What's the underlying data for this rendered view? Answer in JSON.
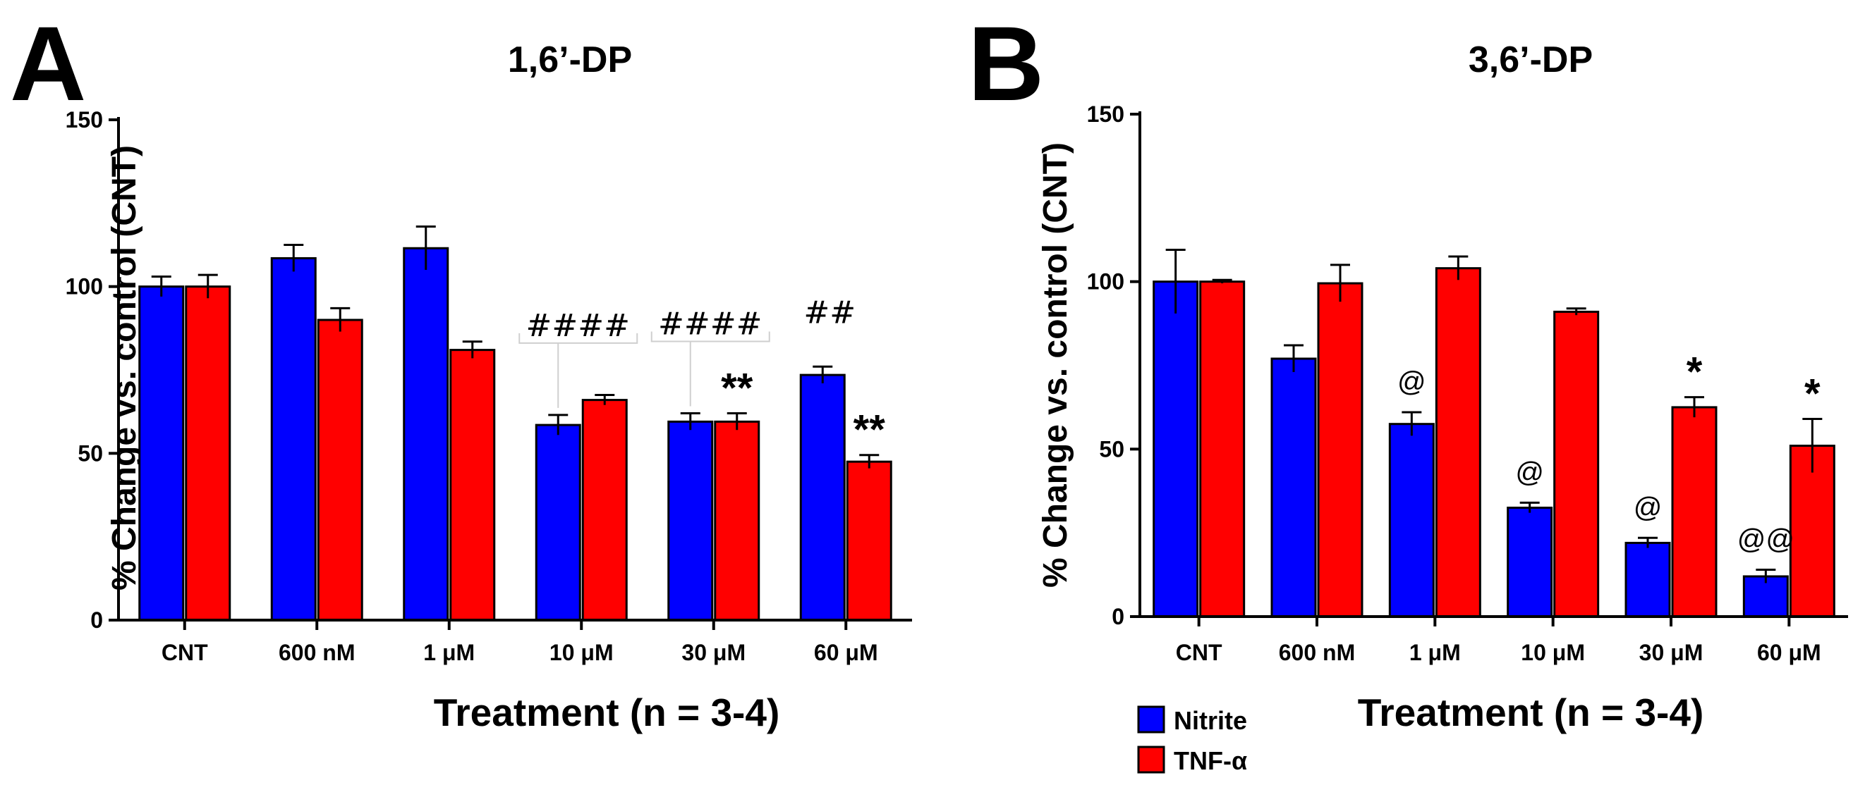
{
  "colors": {
    "nitrite": "#0000ff",
    "tnf": "#ff0000",
    "axis": "#000000"
  },
  "legend": [
    {
      "key": "nitrite",
      "label": "Nitrite"
    },
    {
      "key": "tnf",
      "label": "TNF-α"
    }
  ],
  "chart_data": [
    {
      "type": "bar",
      "panel": "A",
      "title": "1,6’-DP",
      "xlabel": "Treatment (n = 3-4)",
      "ylabel": "% Change vs. control (CNT)",
      "ylim": [
        0,
        150
      ],
      "yticks": [
        0,
        50,
        100,
        150
      ],
      "categories": [
        "CNT",
        "600 nM",
        "1 μM",
        "10 μM",
        "30 μM",
        "60 μM"
      ],
      "series": [
        {
          "name": "Nitrite",
          "key": "nitrite",
          "values": [
            100,
            108.5,
            111.5,
            58.5,
            59.5,
            73.5
          ],
          "errors": [
            3,
            4,
            6.5,
            3,
            2.5,
            2.5
          ]
        },
        {
          "name": "TNF-α",
          "key": "tnf",
          "values": [
            100,
            90,
            81,
            66,
            59.5,
            47.5
          ],
          "errors": [
            3.5,
            3.5,
            2.5,
            1.5,
            2.5,
            2
          ]
        }
      ],
      "annotations": [
        {
          "category": 3,
          "series": "nitrite",
          "text": "####",
          "style": "hash",
          "bracket": true
        },
        {
          "category": 4,
          "series": "nitrite",
          "text": "####",
          "style": "hash",
          "bracket": true
        },
        {
          "category": 5,
          "series": "nitrite",
          "text": "##",
          "style": "hash",
          "bracket": false
        },
        {
          "category": 4,
          "series": "tnf",
          "text": "**",
          "style": "star"
        },
        {
          "category": 5,
          "series": "tnf",
          "text": "**",
          "style": "star"
        }
      ]
    },
    {
      "type": "bar",
      "panel": "B",
      "title": "3,6’-DP",
      "xlabel": "Treatment (n = 3-4)",
      "ylabel": "% Change vs. control (CNT)",
      "ylim": [
        0,
        150
      ],
      "yticks": [
        0,
        50,
        100,
        150
      ],
      "categories": [
        "CNT",
        "600 nM",
        "1 μM",
        "10 μM",
        "30 μM",
        "60 μM"
      ],
      "series": [
        {
          "name": "Nitrite",
          "key": "nitrite",
          "values": [
            100,
            77,
            57.5,
            32.5,
            22,
            12
          ],
          "errors": [
            9.5,
            4,
            3.5,
            1.5,
            1.5,
            2
          ]
        },
        {
          "name": "TNF-α",
          "key": "tnf",
          "values": [
            100,
            99.5,
            104,
            91,
            62.5,
            51
          ],
          "errors": [
            0.5,
            5.5,
            3.5,
            1,
            3,
            8
          ]
        }
      ],
      "annotations": [
        {
          "category": 2,
          "series": "nitrite",
          "text": "@",
          "style": "at"
        },
        {
          "category": 3,
          "series": "nitrite",
          "text": "@",
          "style": "at"
        },
        {
          "category": 4,
          "series": "nitrite",
          "text": "@",
          "style": "at"
        },
        {
          "category": 5,
          "series": "nitrite",
          "text": "@@",
          "style": "at"
        },
        {
          "category": 4,
          "series": "tnf",
          "text": "*",
          "style": "star"
        },
        {
          "category": 5,
          "series": "tnf",
          "text": "*",
          "style": "star"
        }
      ]
    }
  ]
}
